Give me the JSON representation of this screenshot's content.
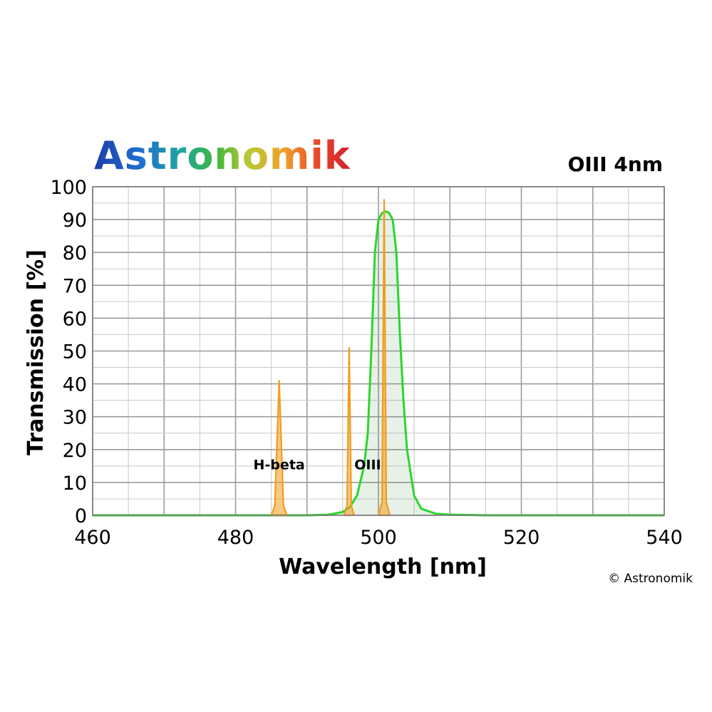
{
  "header": {
    "brand": "Astronomik",
    "product": "OIII 4nm"
  },
  "footer": {
    "copyright": "© Astronomik"
  },
  "chart_data": {
    "type": "line",
    "title": "OIII 4nm",
    "xlabel": "Wavelength [nm]",
    "ylabel": "Transmission [%]",
    "xlim": [
      460,
      540
    ],
    "ylim": [
      0,
      100
    ],
    "xticks": [
      460,
      480,
      500,
      520,
      540
    ],
    "yticks": [
      0,
      10,
      20,
      30,
      40,
      50,
      60,
      70,
      80,
      90,
      100
    ],
    "grid": true,
    "series": [
      {
        "kind": "transmission-curve",
        "color": "#2bd62b",
        "x": [
          460,
          490,
          493,
          495,
          496,
          497,
          498,
          498.5,
          499,
          499.5,
          500,
          500.5,
          501,
          501.5,
          502,
          502.5,
          503,
          503.5,
          504,
          505,
          506,
          508,
          510,
          515,
          540
        ],
        "y": [
          0,
          0,
          0.2,
          1,
          2.5,
          6,
          15,
          25,
          50,
          80,
          90,
          92,
          92.5,
          92,
          90,
          80,
          55,
          35,
          20,
          6,
          2,
          0.5,
          0.2,
          0,
          0
        ]
      },
      {
        "kind": "emission-line",
        "label": "H-beta",
        "color": "#f39c1e",
        "x": [
          485,
          485.5,
          486.1,
          486.7,
          487.2
        ],
        "y": [
          0,
          3,
          41,
          3,
          0
        ]
      },
      {
        "kind": "emission-line",
        "label": "",
        "color": "#f39c1e",
        "x": [
          495.2,
          495.6,
          495.9,
          496.2,
          496.6
        ],
        "y": [
          0,
          3,
          51,
          3,
          0
        ]
      },
      {
        "kind": "emission-line",
        "label": "OIII",
        "color": "#f39c1e",
        "x": [
          500.0,
          500.5,
          500.8,
          501.1,
          501.6
        ],
        "y": [
          0,
          4,
          96,
          4,
          0
        ]
      }
    ],
    "annotations": [
      {
        "text": "H-beta",
        "x": 486.1,
        "y": 14
      },
      {
        "text": "OIII",
        "x": 498.5,
        "y": 14
      }
    ]
  }
}
